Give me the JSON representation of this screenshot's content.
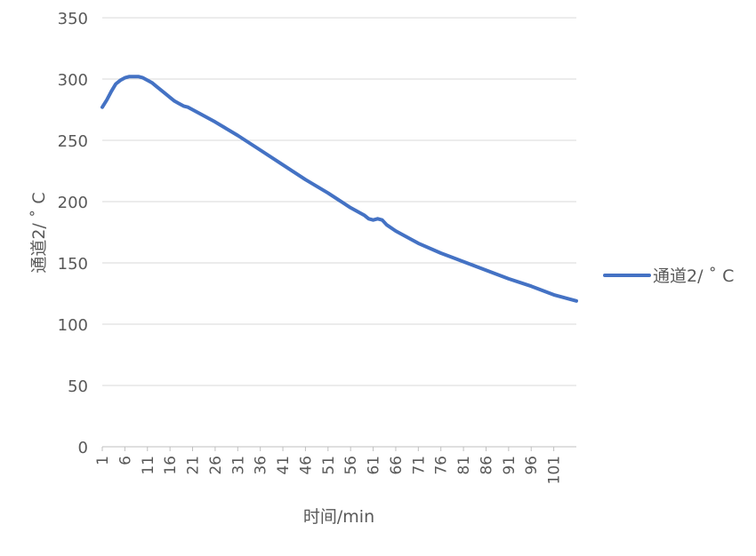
{
  "chart_data": {
    "type": "line",
    "title": "",
    "xlabel": "时间/min",
    "ylabel": "通道2/ ˚ C",
    "ylim": [
      0,
      350
    ],
    "yticks": [
      0,
      50,
      100,
      150,
      200,
      250,
      300,
      350
    ],
    "xticks": [
      1,
      6,
      11,
      16,
      21,
      26,
      31,
      36,
      41,
      46,
      51,
      56,
      61,
      66,
      71,
      76,
      81,
      86,
      91,
      96,
      101
    ],
    "xrange": [
      1,
      106
    ],
    "grid": "horizontal",
    "legend_position": "right",
    "series": [
      {
        "name": "通道2/ ˚ C",
        "color": "#4472C4",
        "points": [
          [
            1,
            277
          ],
          [
            2,
            283
          ],
          [
            3,
            290
          ],
          [
            4,
            296
          ],
          [
            5,
            299
          ],
          [
            6,
            301
          ],
          [
            7,
            302
          ],
          [
            8,
            302
          ],
          [
            9,
            302
          ],
          [
            10,
            301
          ],
          [
            11,
            299
          ],
          [
            12,
            297
          ],
          [
            13,
            294
          ],
          [
            14,
            291
          ],
          [
            15,
            288
          ],
          [
            16,
            285
          ],
          [
            17,
            282
          ],
          [
            18,
            280
          ],
          [
            19,
            278
          ],
          [
            20,
            277
          ],
          [
            21,
            275
          ],
          [
            23,
            271
          ],
          [
            26,
            265
          ],
          [
            31,
            254
          ],
          [
            36,
            242
          ],
          [
            41,
            230
          ],
          [
            46,
            218
          ],
          [
            51,
            207
          ],
          [
            56,
            195
          ],
          [
            59,
            189
          ],
          [
            60,
            186
          ],
          [
            61,
            185
          ],
          [
            62,
            186
          ],
          [
            63,
            185
          ],
          [
            64,
            181
          ],
          [
            66,
            176
          ],
          [
            71,
            166
          ],
          [
            76,
            158
          ],
          [
            81,
            151
          ],
          [
            86,
            144
          ],
          [
            91,
            137
          ],
          [
            96,
            131
          ],
          [
            101,
            124
          ],
          [
            106,
            119
          ]
        ]
      }
    ]
  }
}
